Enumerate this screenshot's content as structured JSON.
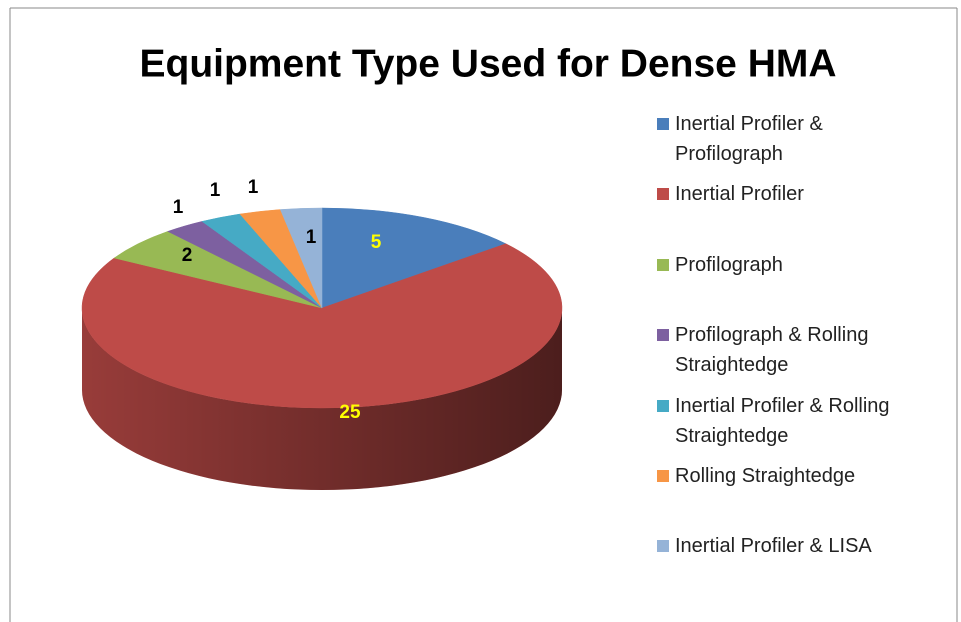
{
  "chart_data": {
    "type": "pie",
    "title": "Equipment Type Used for Dense HMA",
    "categories": [
      "Inertial Profiler & Profilograph",
      "Inertial Profiler",
      "Profilograph",
      "Profilograph & Rolling Straightedge",
      "Inertial Profiler & Rolling Straightedge",
      "Rolling Straightedge",
      "Inertial Profiler & LISA"
    ],
    "values": [
      5,
      25,
      2,
      1,
      1,
      1,
      1
    ],
    "colors": [
      "#4a7ebb",
      "#be4b48",
      "#98b954",
      "#7d60a0",
      "#46aac5",
      "#f79646",
      "#95b3d7"
    ],
    "legend": "right"
  }
}
